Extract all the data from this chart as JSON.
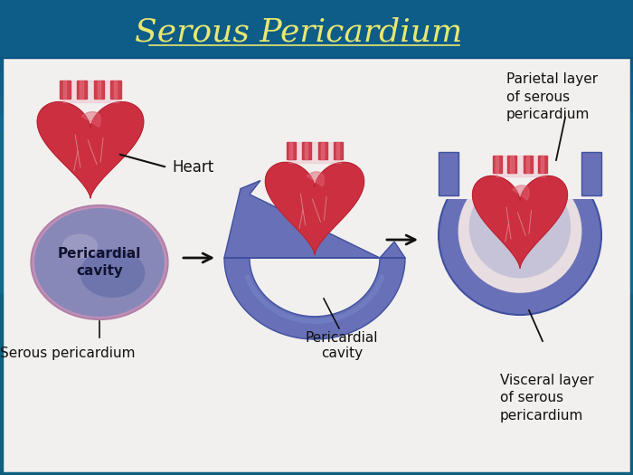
{
  "title": "Serous Pericardium",
  "title_color": "#e8e870",
  "title_fontsize": 26,
  "bg_color_top": "#1060a0",
  "bg_color_mid": "#107898",
  "panel_bg": "#f0eeec",
  "labels": {
    "heart": "Heart",
    "pericardial_cavity_1": "Pericardial\ncavity",
    "serous_pericardium": "Serous pericardium",
    "pericardial_cavity_2": "Pericardial\ncavity",
    "parietal_layer": "Parietal layer\nof serous\npericardium",
    "visceral_layer": "Visceral layer\nof serous\npericardium"
  },
  "label_fontsize": 10.5,
  "heart_red_dark": "#b02030",
  "heart_red": "#cc3040",
  "heart_red_light": "#e06070",
  "heart_pink": "#e8a0a8",
  "vessel_top": "#cc3040",
  "vessel_pink": "#e87080",
  "peri_outer": "#6870b8",
  "peri_mid": "#7888c8",
  "peri_inner": "#9090c0",
  "peri_edge": "#4050a0",
  "cavity_outer": "#c090b8",
  "cavity_main": "#8888b8",
  "cavity_dark": "#5060a0",
  "cavity_highlight": "#aaaacc"
}
